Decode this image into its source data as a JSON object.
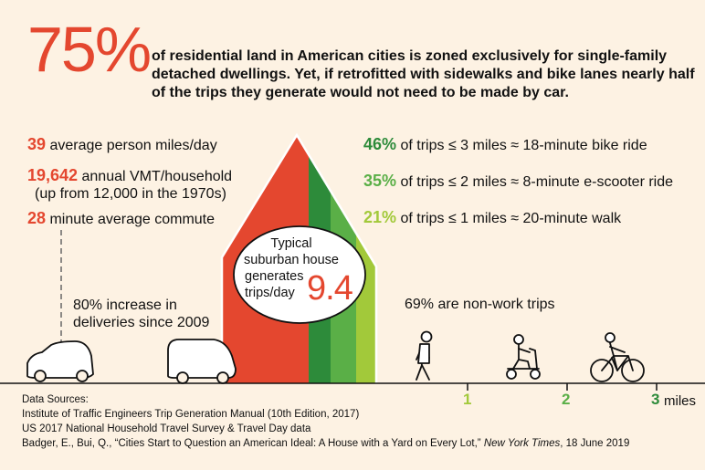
{
  "headline": {
    "big_number": "75%",
    "text": "of residential land in American cities is zoned exclusively for single-family detached dwellings. Yet, if retrofitted with sidewalks and bike lanes nearly half of the trips they generate would not need to be made by car."
  },
  "left_stats": [
    {
      "number": "39",
      "text": " average person miles/day"
    },
    {
      "number": "19,642",
      "text": " annual VMT/household",
      "subtext": "(up from 12,000 in the 1970s)"
    },
    {
      "number": "28",
      "text": " minute average commute"
    }
  ],
  "deliveries": {
    "line1": "80% increase in",
    "line2": "deliveries since 2009"
  },
  "house": {
    "label_line1": "Typical",
    "label_line2": "suburban house",
    "label_line3": "generates",
    "label_line4": "trips/day",
    "trips_value": "9.4"
  },
  "right_stats": [
    {
      "number": "46%",
      "text": " of trips ≤ 3 miles ≈ 18-minute bike ride",
      "color": "#2d8b3a"
    },
    {
      "number": "35%",
      "text": " of trips ≤ 2 miles ≈ 8-minute e-scooter ride",
      "color": "#5aaf47"
    },
    {
      "number": "21%",
      "text": " of trips ≤ 1 miles ≈ 20-minute walk",
      "color": "#a2c93a"
    }
  ],
  "non_work": "69% are non-work trips",
  "distance_axis": {
    "marks": [
      "1",
      "2",
      "3"
    ],
    "unit": "miles"
  },
  "sources": {
    "heading": "Data Sources:",
    "line1": "Institute of Traffic Engineers Trip Generation Manual (10th Edition, 2017)",
    "line2": "US 2017 National Household Travel Survey & Travel Day data",
    "line3_pre": "Badger, E., Bui, Q., “Cities Start to Question an American Ideal: A House with a Yard on Every Lot,” ",
    "line3_pub": "New York Times",
    "line3_post": ", 18 June 2019"
  },
  "colors": {
    "red": "#e4472f",
    "dark_green": "#2d8b3a",
    "mid_green": "#5aaf47",
    "light_green": "#a2c93a",
    "background": "#fdf2e3"
  }
}
